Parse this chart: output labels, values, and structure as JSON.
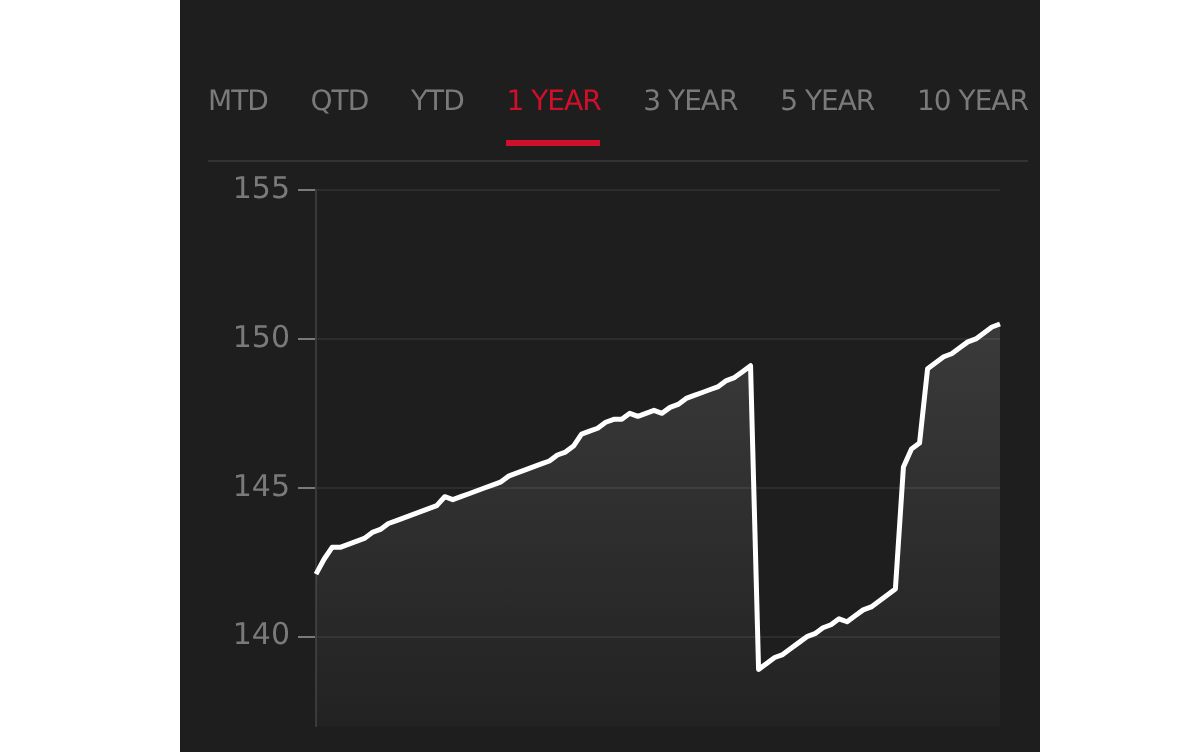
{
  "chart_data": {
    "type": "area",
    "annotations": [
      "MTD",
      "QTD",
      "YTD",
      "1 YEAR",
      "3 YEAR",
      "5 YEAR",
      "10 YEAR"
    ],
    "categories": [
      null,
      null,
      null,
      null,
      null,
      null,
      null,
      null,
      null,
      null,
      null,
      null,
      null,
      null,
      null,
      null,
      null,
      null,
      null,
      null,
      null,
      null,
      null,
      null,
      null,
      null,
      null,
      null,
      null,
      null,
      null,
      null,
      null,
      null,
      null,
      null,
      null,
      null,
      null,
      null,
      null,
      null,
      null,
      null,
      null,
      null,
      null,
      null,
      null,
      null,
      null,
      null,
      null,
      null,
      null,
      null,
      null,
      null,
      null,
      null,
      null,
      null,
      null,
      null,
      null,
      null,
      null,
      null,
      null,
      null,
      null,
      null,
      null,
      null,
      null,
      null,
      null,
      null,
      null,
      null,
      null,
      null,
      null,
      null,
      null,
      null
    ],
    "series": [
      {
        "color": "#ffffff",
        "values": [
          142.1,
          142.6,
          143.0,
          143.0,
          143.1,
          143.2,
          143.3,
          143.5,
          143.6,
          143.8,
          143.9,
          144.0,
          144.1,
          144.2,
          144.3,
          144.4,
          144.7,
          144.6,
          144.7,
          144.8,
          144.9,
          145.0,
          145.1,
          145.2,
          145.4,
          145.5,
          145.6,
          145.7,
          145.8,
          145.9,
          146.1,
          146.2,
          146.4,
          146.8,
          146.9,
          147.0,
          147.2,
          147.3,
          147.3,
          147.5,
          147.4,
          147.5,
          147.6,
          147.5,
          147.7,
          147.8,
          148.0,
          148.1,
          148.2,
          148.3,
          148.4,
          148.6,
          148.7,
          148.9,
          149.1,
          138.9,
          139.1,
          139.3,
          139.4,
          139.6,
          139.8,
          140.0,
          140.1,
          140.3,
          140.4,
          140.6,
          140.5,
          140.7,
          140.9,
          141.0,
          141.2,
          141.4,
          141.6,
          145.7,
          146.3,
          146.5,
          149.0,
          149.2,
          149.4,
          149.5,
          149.7,
          149.9,
          150.0,
          150.2,
          150.4,
          150.5
        ]
      }
    ],
    "ylim": [
      137,
      155
    ],
    "yticks": [
      140,
      145,
      150,
      155
    ],
    "grid": "y",
    "tick_labels": "y",
    "legend": false,
    "marker": "none",
    "line_style": "solid"
  }
}
